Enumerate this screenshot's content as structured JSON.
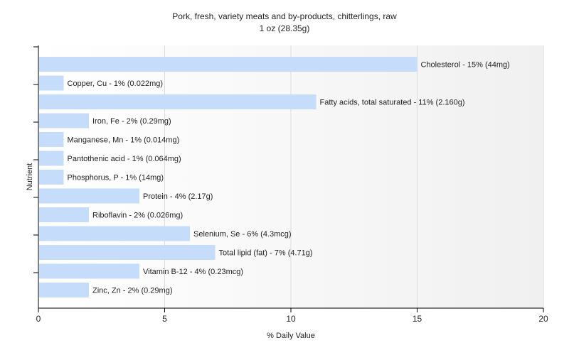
{
  "chart_data": {
    "type": "bar",
    "orientation": "horizontal",
    "title": "Pork, fresh, variety meats and by-products, chitterlings, raw",
    "subtitle": "1 oz (28.35g)",
    "xlabel": "% Daily Value",
    "ylabel": "Nutrient",
    "xlim": [
      0,
      20
    ],
    "xticks": [
      "0",
      "5",
      "10",
      "15",
      "20"
    ],
    "grid": true,
    "legend": "none",
    "bar_color": "#c6dcfb",
    "categories": [
      "Cholesterol",
      "Copper, Cu",
      "Fatty acids, total saturated",
      "Iron, Fe",
      "Manganese, Mn",
      "Pantothenic acid",
      "Phosphorus, P",
      "Protein",
      "Riboflavin",
      "Selenium, Se",
      "Total lipid (fat)",
      "Vitamin B-12",
      "Zinc, Zn"
    ],
    "values": [
      15,
      1,
      11,
      2,
      1,
      1,
      1,
      4,
      2,
      6,
      7,
      4,
      2
    ],
    "labels": [
      "Cholesterol - 15% (44mg)",
      "Copper, Cu - 1% (0.022mg)",
      "Fatty acids, total saturated - 11% (2.160g)",
      "Iron, Fe - 2% (0.29mg)",
      "Manganese, Mn - 1% (0.014mg)",
      "Pantothenic acid - 1% (0.064mg)",
      "Phosphorus, P - 1% (14mg)",
      "Protein - 4% (2.17g)",
      "Riboflavin - 2% (0.026mg)",
      "Selenium, Se - 6% (4.3mcg)",
      "Total lipid (fat) - 7% (4.71g)",
      "Vitamin B-12 - 4% (0.23mcg)",
      "Zinc, Zn - 2% (0.29mg)"
    ]
  }
}
